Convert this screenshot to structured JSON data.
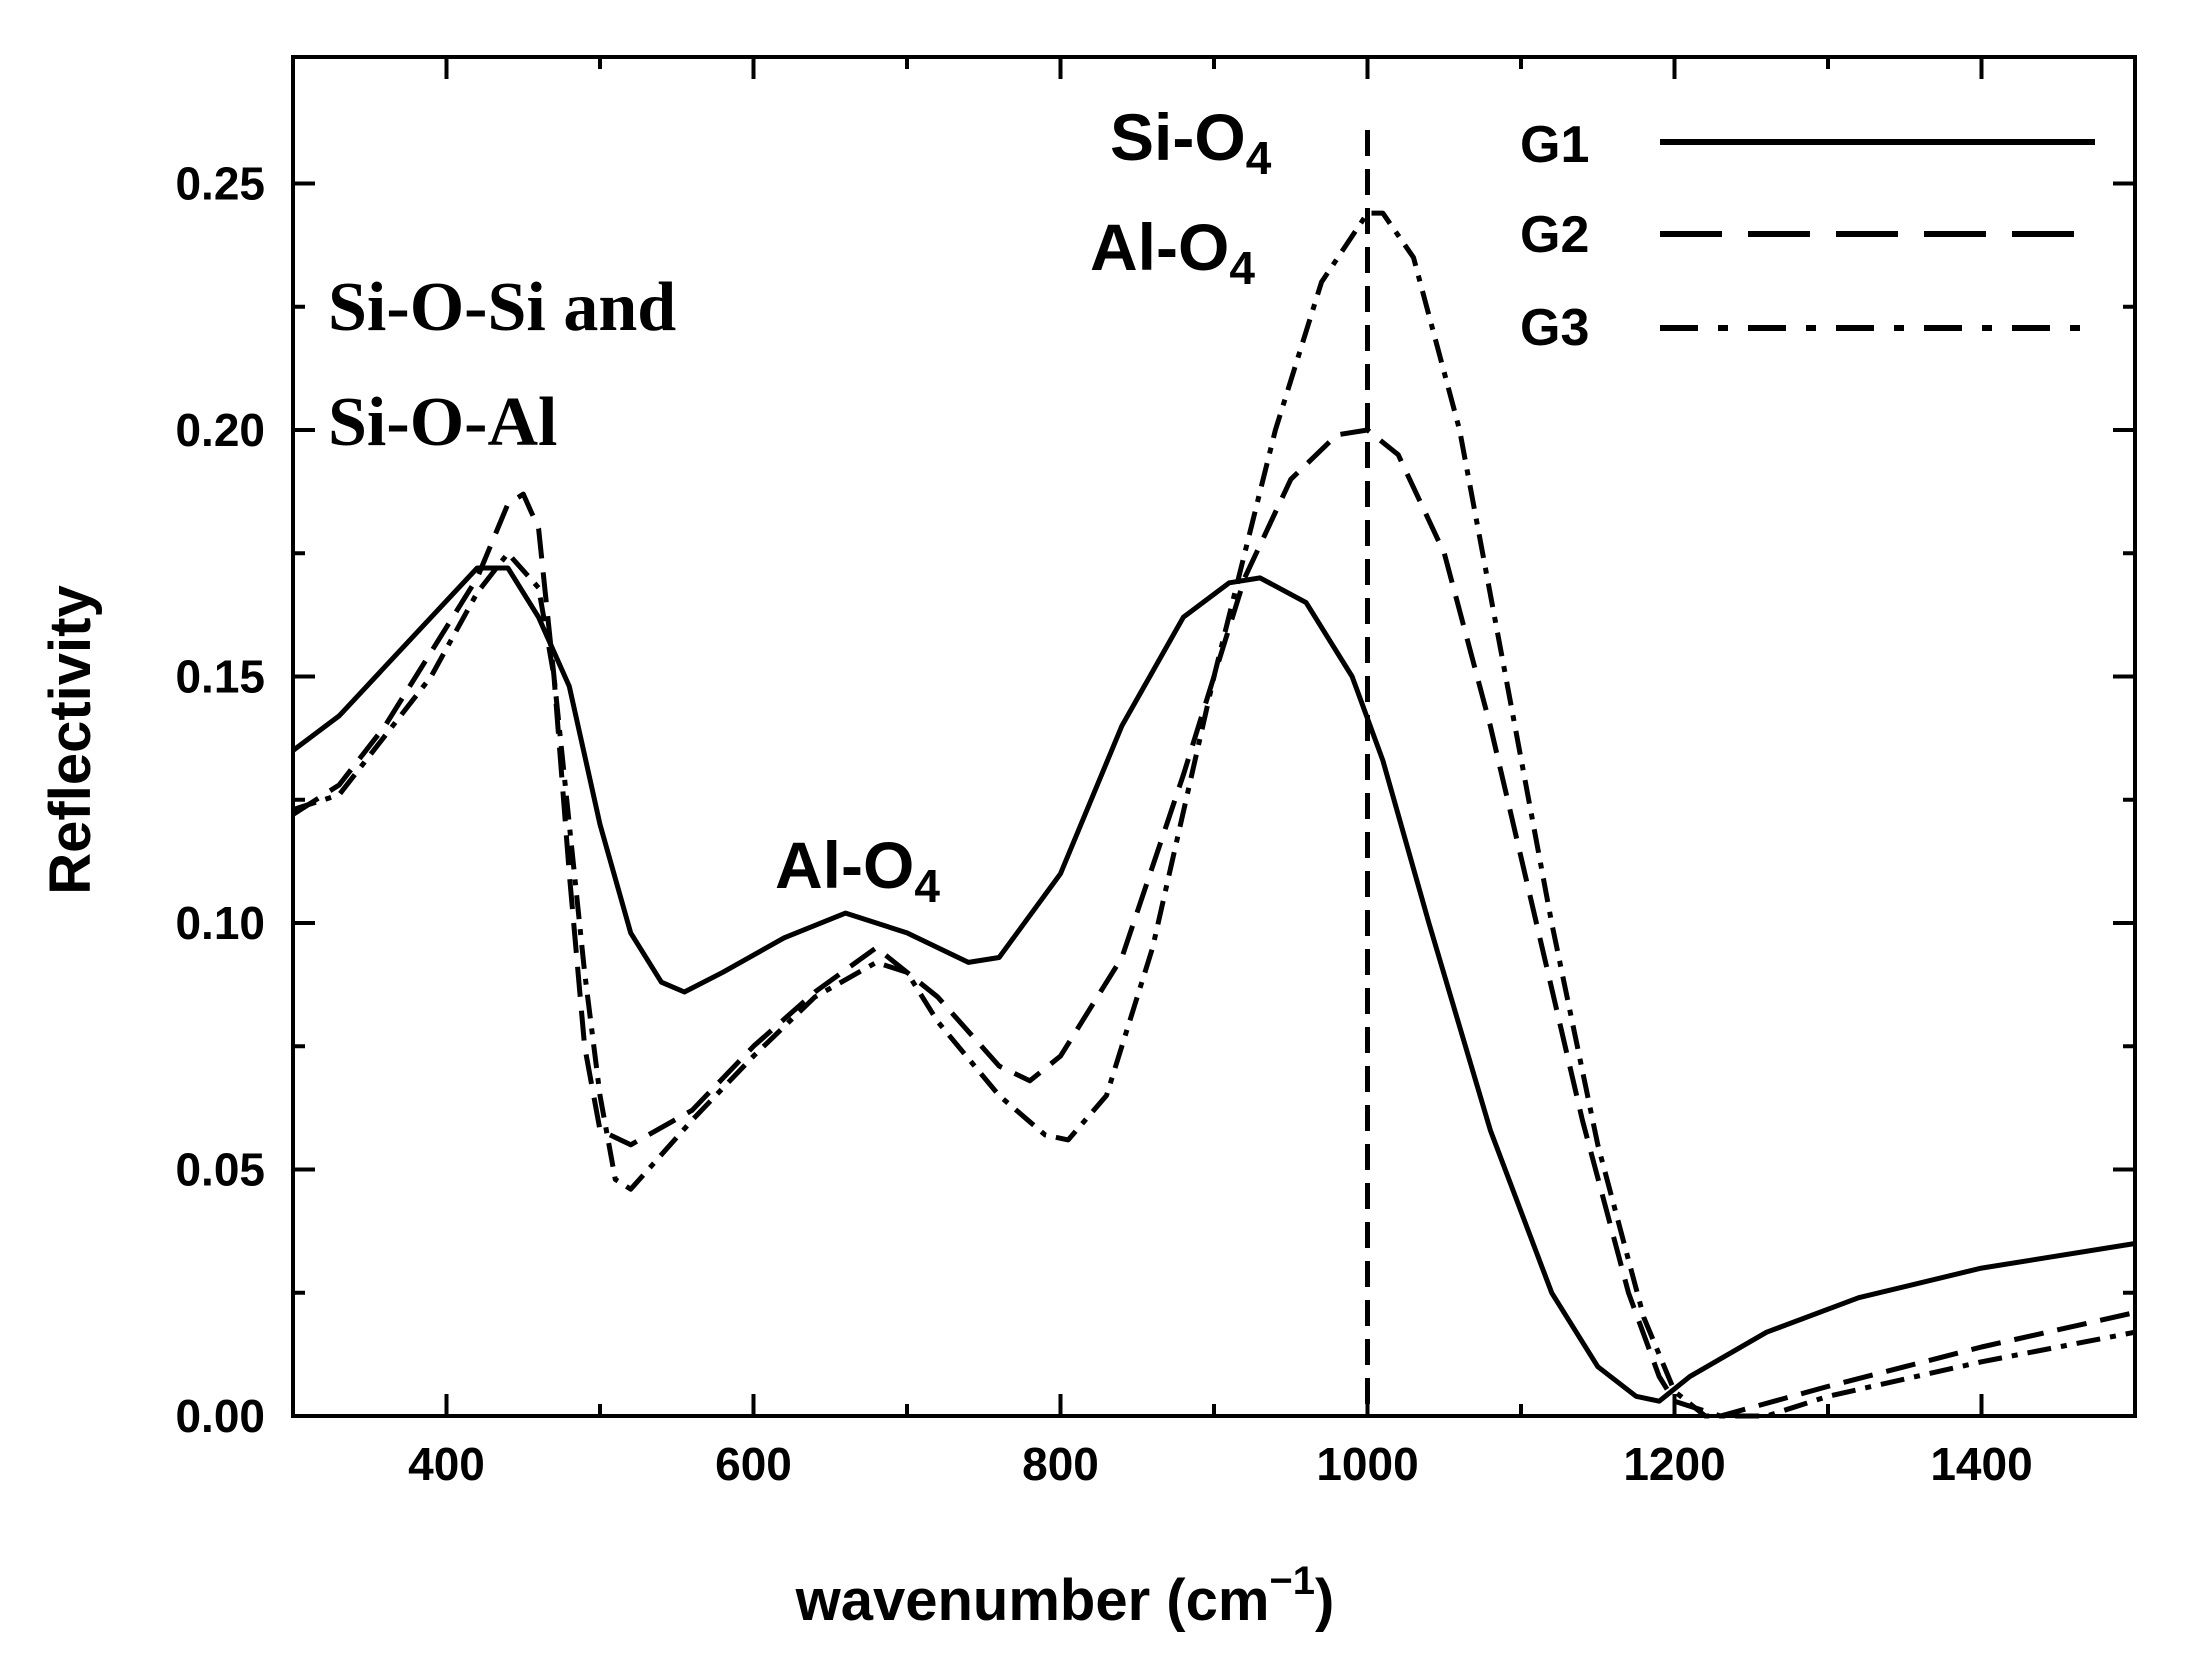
{
  "chart_data": {
    "type": "line",
    "title": "",
    "xlabel": "wavenumber (cm",
    "xlabel_sup": "−1",
    "xlabel_close": ")",
    "ylabel": "Reflectivity",
    "xlim": [
      300,
      1500
    ],
    "ylim": [
      0,
      0.28
    ],
    "x_ticks": [
      400,
      600,
      800,
      1000,
      1200,
      1400
    ],
    "x_tick_labels": [
      "400",
      "600",
      "800",
      "1000",
      "1200",
      "1400"
    ],
    "y_ticks": [
      0,
      0.05,
      0.1,
      0.15,
      0.2,
      0.25
    ],
    "y_tick_labels": [
      "0.00",
      "0.05",
      "0.10",
      "0.15",
      "0.20",
      "0.25"
    ],
    "legend_position": "top-right",
    "series": [
      {
        "name": "G1",
        "style": "solid",
        "x": [
          300,
          330,
          360,
          390,
          420,
          440,
          460,
          480,
          500,
          520,
          540,
          555,
          580,
          620,
          660,
          700,
          740,
          760,
          800,
          840,
          880,
          910,
          930,
          960,
          990,
          1010,
          1040,
          1080,
          1120,
          1150,
          1175,
          1190,
          1210,
          1260,
          1320,
          1400,
          1500
        ],
        "y": [
          0.135,
          0.142,
          0.152,
          0.162,
          0.172,
          0.172,
          0.162,
          0.148,
          0.12,
          0.098,
          0.088,
          0.086,
          0.09,
          0.097,
          0.102,
          0.098,
          0.092,
          0.093,
          0.11,
          0.14,
          0.162,
          0.169,
          0.17,
          0.165,
          0.15,
          0.133,
          0.1,
          0.058,
          0.025,
          0.01,
          0.004,
          0.003,
          0.008,
          0.017,
          0.024,
          0.03,
          0.035
        ]
      },
      {
        "name": "G2",
        "style": "dashed",
        "x": [
          300,
          330,
          360,
          390,
          420,
          440,
          450,
          460,
          470,
          480,
          490,
          500,
          520,
          560,
          600,
          640,
          680,
          720,
          760,
          780,
          800,
          840,
          880,
          920,
          950,
          980,
          1000,
          1020,
          1050,
          1080,
          1110,
          1140,
          1170,
          1190,
          1200,
          1230,
          1300,
          1400,
          1500
        ],
        "y": [
          0.122,
          0.128,
          0.14,
          0.155,
          0.17,
          0.185,
          0.187,
          0.18,
          0.15,
          0.11,
          0.075,
          0.058,
          0.055,
          0.062,
          0.075,
          0.086,
          0.095,
          0.085,
          0.071,
          0.068,
          0.073,
          0.093,
          0.13,
          0.17,
          0.19,
          0.199,
          0.2,
          0.195,
          0.175,
          0.14,
          0.1,
          0.06,
          0.025,
          0.008,
          0.003,
          0.0,
          0.006,
          0.014,
          0.021
        ]
      },
      {
        "name": "G3",
        "style": "dash-dot",
        "x": [
          300,
          330,
          360,
          390,
          420,
          440,
          460,
          470,
          480,
          490,
          500,
          510,
          520,
          560,
          600,
          640,
          680,
          700,
          720,
          760,
          790,
          805,
          830,
          860,
          900,
          940,
          970,
          1000,
          1010,
          1030,
          1060,
          1090,
          1120,
          1150,
          1180,
          1200,
          1220,
          1260,
          1300,
          1400,
          1500
        ],
        "y": [
          0.123,
          0.126,
          0.138,
          0.15,
          0.167,
          0.175,
          0.168,
          0.15,
          0.12,
          0.09,
          0.065,
          0.048,
          0.046,
          0.06,
          0.073,
          0.085,
          0.092,
          0.09,
          0.08,
          0.065,
          0.057,
          0.056,
          0.065,
          0.095,
          0.15,
          0.2,
          0.23,
          0.244,
          0.244,
          0.235,
          0.2,
          0.15,
          0.1,
          0.055,
          0.02,
          0.005,
          0.0,
          0.0,
          0.004,
          0.011,
          0.017
        ]
      }
    ],
    "annotations": [
      {
        "text": "Si-O-Si and",
        "style": "serif"
      },
      {
        "text": "Si-O-Al",
        "style": "serif"
      },
      {
        "text": "Al-O",
        "sub": "4"
      },
      {
        "text": "Si-O",
        "sub": "4"
      },
      {
        "text": "Al-O",
        "sub": "4"
      }
    ],
    "reference_line_x": 1000
  }
}
